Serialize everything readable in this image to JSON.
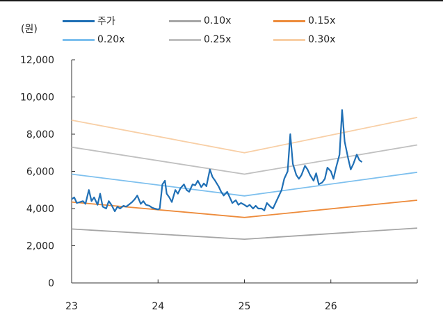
{
  "chart_data": {
    "type": "line",
    "unit_label": "(원)",
    "x_ticks": [
      {
        "label": "23",
        "value": 23
      },
      {
        "label": "24",
        "value": 24
      },
      {
        "label": "25",
        "value": 25
      },
      {
        "label": "26",
        "value": 26
      }
    ],
    "xlim": [
      23,
      27
    ],
    "y_ticks": [
      {
        "label": "0",
        "value": 0
      },
      {
        "label": "2,000",
        "value": 2000
      },
      {
        "label": "4,000",
        "value": 4000
      },
      {
        "label": "6,000",
        "value": 6000
      },
      {
        "label": "8,000",
        "value": 8000
      },
      {
        "label": "10,000",
        "value": 10000
      },
      {
        "label": "12,000",
        "value": 12000
      }
    ],
    "ylim": [
      0,
      12000
    ],
    "legend_placement": "top",
    "series": [
      {
        "name": "주가",
        "color": "#1f6fb5",
        "width": 2.2,
        "x": [
          23.0,
          23.03,
          23.06,
          23.1,
          23.13,
          23.16,
          23.2,
          23.23,
          23.26,
          23.3,
          23.33,
          23.36,
          23.4,
          23.43,
          23.46,
          23.5,
          23.53,
          23.56,
          23.6,
          23.63,
          23.66,
          23.7,
          23.73,
          23.76,
          23.8,
          23.83,
          23.86,
          23.9,
          23.93,
          23.96,
          24.0,
          24.02,
          24.05,
          24.08,
          24.1,
          24.13,
          24.16,
          24.2,
          24.23,
          24.26,
          24.3,
          24.33,
          24.36,
          24.4,
          24.43,
          24.46,
          24.5,
          24.53,
          24.56,
          24.6,
          24.63,
          24.66,
          24.7,
          24.73,
          24.76,
          24.8,
          24.83,
          24.86,
          24.9,
          24.93,
          24.96,
          25.0,
          25.03,
          25.06,
          25.1,
          25.13,
          25.16,
          25.2,
          25.23,
          25.26,
          25.3,
          25.33,
          25.36,
          25.4,
          25.43,
          25.46,
          25.5,
          25.53,
          25.56,
          25.6,
          25.63,
          25.66,
          25.7,
          25.73,
          25.76,
          25.8,
          25.83,
          25.86,
          25.9,
          25.93,
          25.96,
          26.0,
          26.03,
          26.06,
          26.1,
          26.13,
          26.16,
          26.2,
          26.23,
          26.26,
          26.3,
          26.33,
          26.36
        ],
        "values": [
          4500,
          4600,
          4300,
          4350,
          4400,
          4250,
          5000,
          4400,
          4600,
          4200,
          4800,
          4100,
          4000,
          4400,
          4200,
          3850,
          4100,
          4000,
          4150,
          4100,
          4200,
          4350,
          4500,
          4700,
          4250,
          4400,
          4200,
          4150,
          4050,
          4000,
          3950,
          4000,
          5300,
          5500,
          4800,
          4600,
          4350,
          5000,
          4800,
          5100,
          5300,
          5000,
          4900,
          5300,
          5250,
          5500,
          5150,
          5350,
          5200,
          6100,
          5700,
          5500,
          5200,
          4900,
          4700,
          4900,
          4600,
          4300,
          4450,
          4200,
          4300,
          4200,
          4100,
          4200,
          4000,
          4150,
          4000,
          4000,
          3900,
          4300,
          4100,
          4000,
          4300,
          4700,
          5000,
          5600,
          6000,
          8000,
          6400,
          5800,
          5600,
          5800,
          6300,
          6100,
          5800,
          5500,
          5900,
          5300,
          5400,
          5600,
          6200,
          6000,
          5600,
          6200,
          6900,
          9300,
          7600,
          6700,
          6100,
          6400,
          6900,
          6600,
          6500
        ]
      },
      {
        "name": "0.10x",
        "color": "#a6a6a6",
        "width": 1.8,
        "x": [
          23,
          25,
          27
        ],
        "values": [
          2900,
          2350,
          2950
        ]
      },
      {
        "name": "0.15x",
        "color": "#ed8b3b",
        "width": 1.8,
        "x": [
          23,
          25,
          27
        ],
        "values": [
          4350,
          3520,
          4450
        ]
      },
      {
        "name": "0.20x",
        "color": "#7ec0ee",
        "width": 1.8,
        "x": [
          23,
          25,
          27
        ],
        "values": [
          5850,
          4680,
          5950
        ]
      },
      {
        "name": "0.25x",
        "color": "#c0c0c0",
        "width": 1.8,
        "x": [
          23,
          25,
          27
        ],
        "values": [
          7300,
          5850,
          7420
        ]
      },
      {
        "name": "0.30x",
        "color": "#f8cfa6",
        "width": 1.8,
        "x": [
          23,
          25,
          27
        ],
        "values": [
          8750,
          7000,
          8900
        ]
      }
    ]
  }
}
